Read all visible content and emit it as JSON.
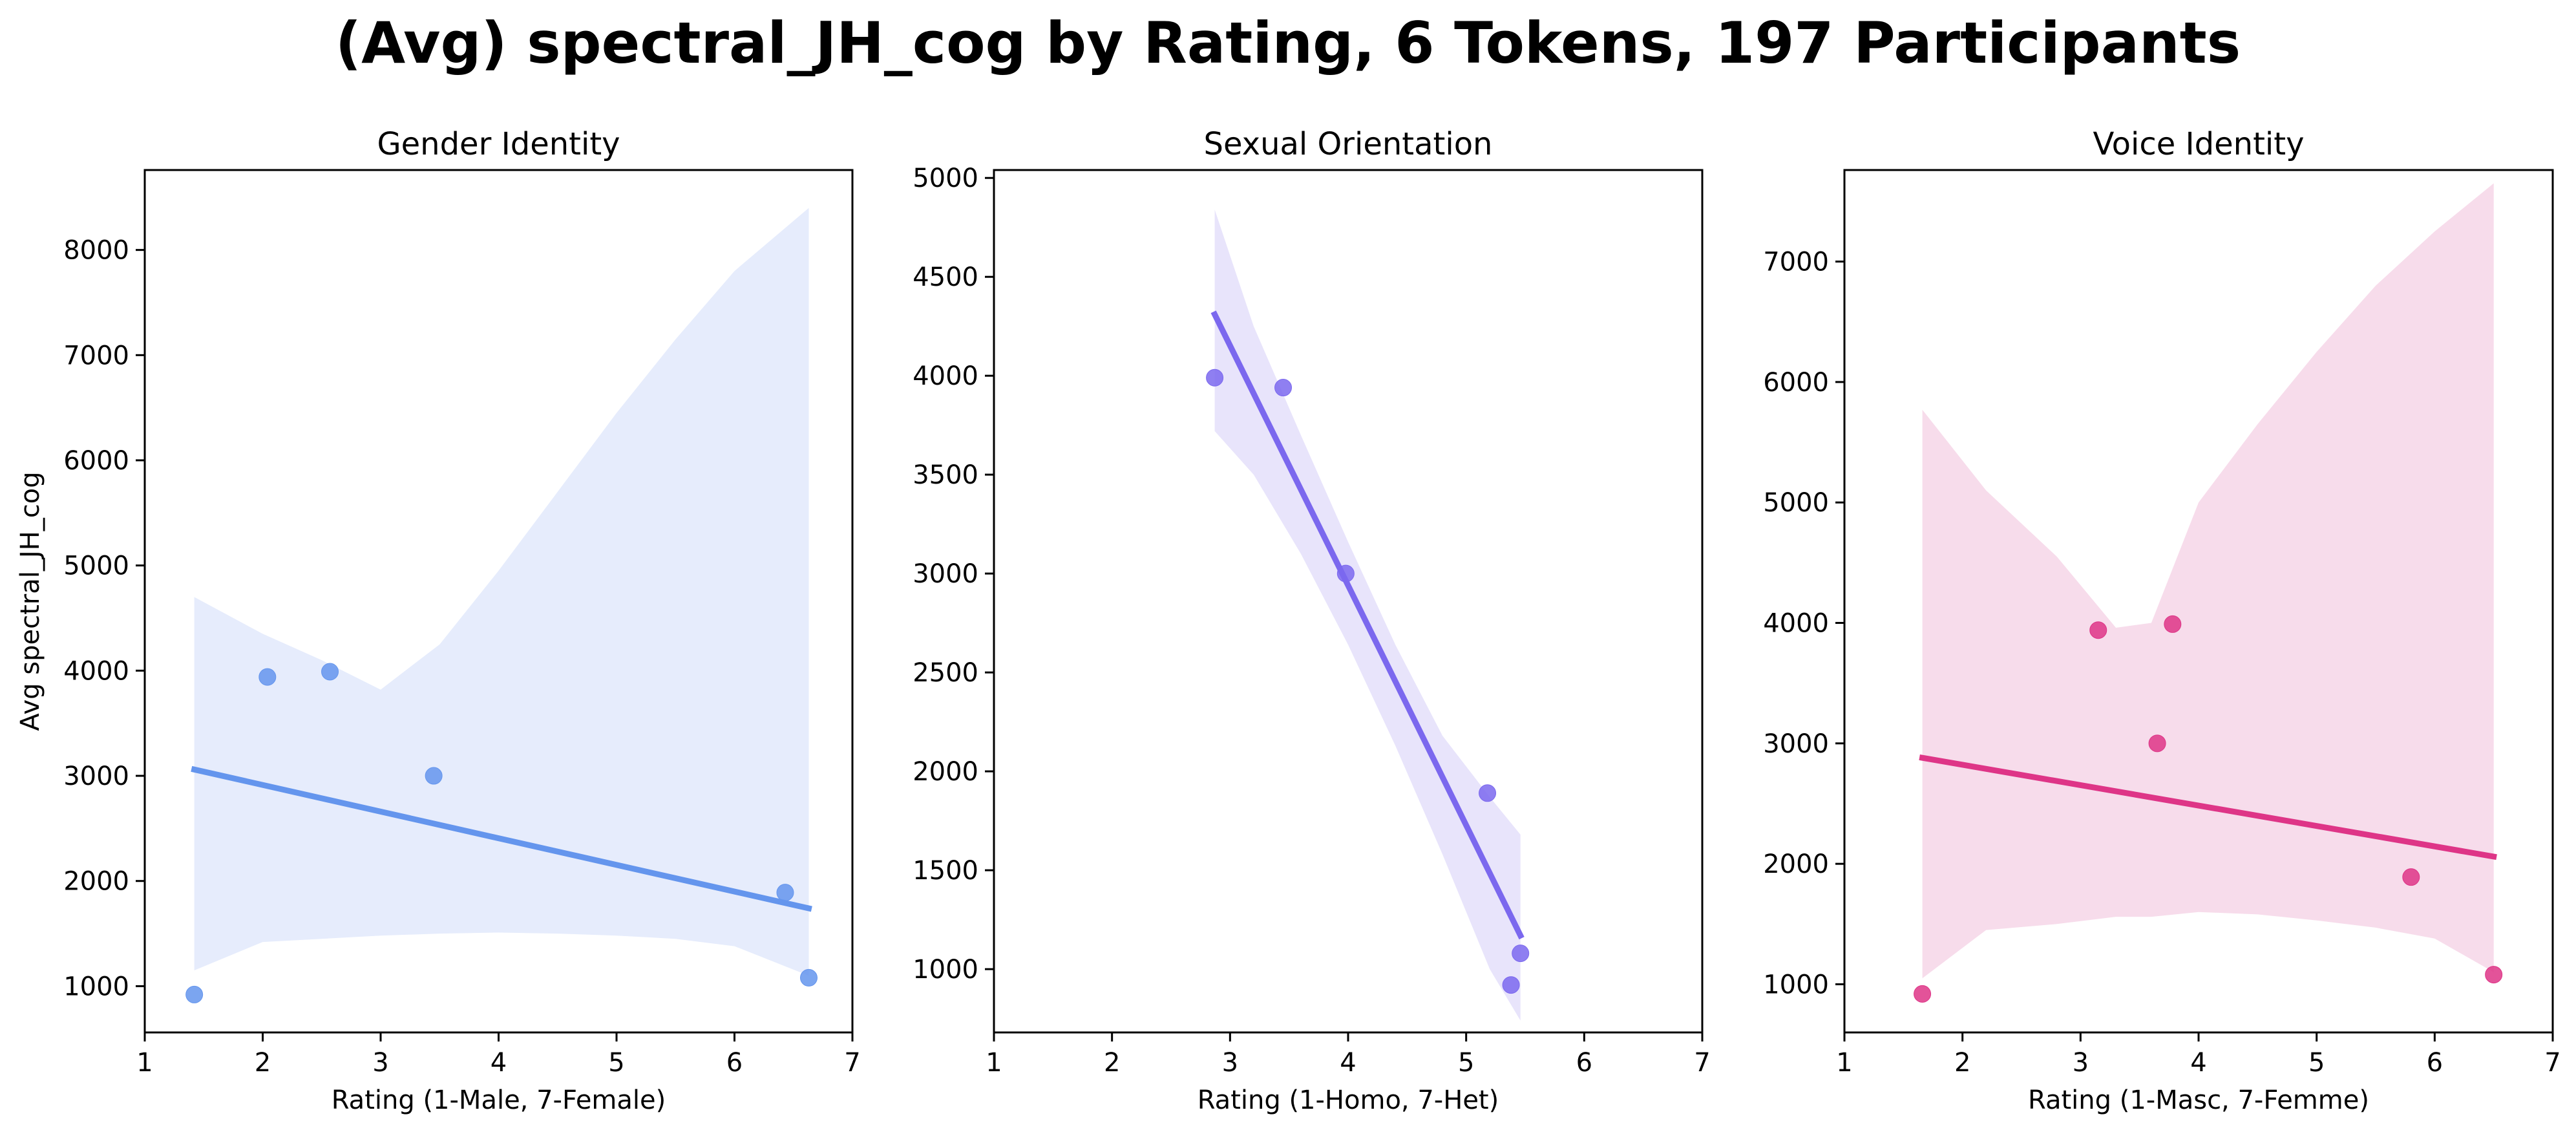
{
  "figure": {
    "title": "(Avg) spectral_JH_cog by Rating, 6 Tokens, 197 Participants"
  },
  "chart_data": [
    {
      "type": "scatter",
      "title": "Gender Identity",
      "xlabel": "Rating (1-Male, 7-Female)",
      "ylabel": "Avg spectral_JH_cog",
      "xlim": [
        1,
        7
      ],
      "ylim": [
        560,
        8760
      ],
      "xticks": [
        1,
        2,
        3,
        4,
        5,
        6,
        7
      ],
      "yticks": [
        1000,
        2000,
        3000,
        4000,
        5000,
        6000,
        7000,
        8000
      ],
      "color": "#6495ED",
      "band_color": "#E6ECFC",
      "points": [
        {
          "x": 1.42,
          "y": 920
        },
        {
          "x": 2.04,
          "y": 3940
        },
        {
          "x": 2.57,
          "y": 3990
        },
        {
          "x": 3.45,
          "y": 3000
        },
        {
          "x": 6.43,
          "y": 1890
        },
        {
          "x": 6.63,
          "y": 1080
        }
      ],
      "regression": {
        "x": [
          1.42,
          6.63
        ],
        "y": [
          3060,
          1740
        ]
      },
      "confidence_band": {
        "x": [
          1.42,
          2.0,
          2.5,
          3.0,
          3.5,
          4.0,
          4.5,
          5.0,
          5.5,
          6.0,
          6.63
        ],
        "upper": [
          4700,
          4350,
          4100,
          3820,
          4250,
          4950,
          5700,
          6450,
          7150,
          7800,
          8400
        ],
        "lower": [
          1150,
          1420,
          1450,
          1480,
          1500,
          1510,
          1500,
          1480,
          1450,
          1380,
          1100
        ]
      },
      "grid": false,
      "legend": "none"
    },
    {
      "type": "scatter",
      "title": "Sexual Orientation",
      "xlabel": "Rating (1-Homo, 7-Het)",
      "ylabel": "",
      "xlim": [
        1,
        7
      ],
      "ylim": [
        680,
        5040
      ],
      "xticks": [
        1,
        2,
        3,
        4,
        5,
        6,
        7
      ],
      "yticks": [
        1000,
        1500,
        2000,
        2500,
        3000,
        3500,
        4000,
        4500,
        5000
      ],
      "color": "#7B68EE",
      "band_color": "#E8E4FB",
      "points": [
        {
          "x": 2.87,
          "y": 3990
        },
        {
          "x": 3.45,
          "y": 3940
        },
        {
          "x": 3.98,
          "y": 3000
        },
        {
          "x": 5.18,
          "y": 1890
        },
        {
          "x": 5.38,
          "y": 920
        },
        {
          "x": 5.46,
          "y": 1080
        }
      ],
      "regression": {
        "x": [
          2.87,
          5.46
        ],
        "y": [
          4310,
          1170
        ]
      },
      "confidence_band": {
        "x": [
          2.87,
          3.2,
          3.6,
          4.0,
          4.4,
          4.8,
          5.2,
          5.46
        ],
        "upper": [
          4840,
          4250,
          3700,
          3160,
          2640,
          2180,
          1870,
          1680
        ],
        "lower": [
          3720,
          3500,
          3100,
          2640,
          2130,
          1580,
          1000,
          740
        ]
      },
      "grid": false,
      "legend": "none"
    },
    {
      "type": "scatter",
      "title": "Voice Identity",
      "xlabel": "Rating (1-Masc, 7-Femme)",
      "ylabel": "",
      "xlim": [
        1,
        7
      ],
      "ylim": [
        600,
        7760
      ],
      "xticks": [
        1,
        2,
        3,
        4,
        5,
        6,
        7
      ],
      "yticks": [
        1000,
        2000,
        3000,
        4000,
        5000,
        6000,
        7000
      ],
      "color": "#DE3587",
      "band_color": "#F7DCEB",
      "points": [
        {
          "x": 1.66,
          "y": 920
        },
        {
          "x": 3.15,
          "y": 3940
        },
        {
          "x": 3.65,
          "y": 3000
        },
        {
          "x": 3.78,
          "y": 3990
        },
        {
          "x": 5.8,
          "y": 1890
        },
        {
          "x": 6.5,
          "y": 1080
        }
      ],
      "regression": {
        "x": [
          1.66,
          6.5
        ],
        "y": [
          2880,
          2060
        ]
      },
      "confidence_band": {
        "x": [
          1.66,
          2.2,
          2.8,
          3.3,
          3.6,
          4.0,
          4.5,
          5.0,
          5.5,
          6.0,
          6.5
        ],
        "upper": [
          5770,
          5100,
          4550,
          3960,
          4000,
          5000,
          5650,
          6250,
          6800,
          7250,
          7650
        ],
        "lower": [
          1050,
          1450,
          1500,
          1560,
          1560,
          1600,
          1580,
          1530,
          1470,
          1380,
          1100
        ]
      },
      "grid": false,
      "legend": "none"
    }
  ]
}
